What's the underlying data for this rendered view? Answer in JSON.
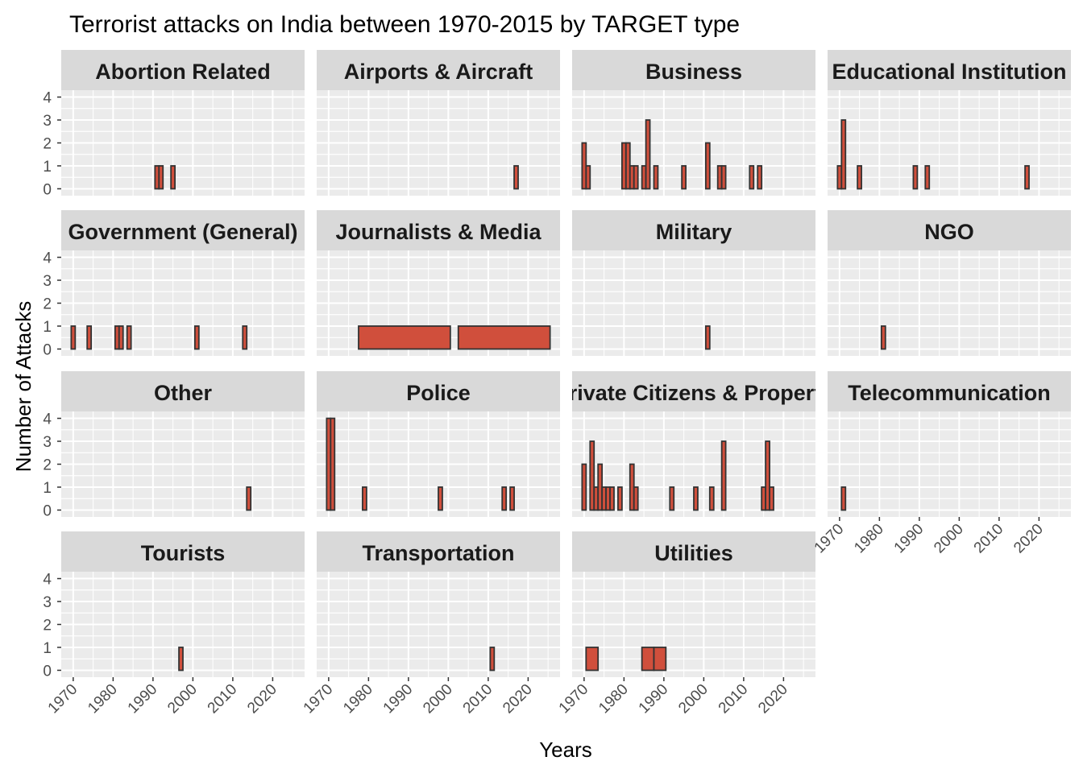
{
  "chart_data": {
    "type": "bar",
    "title": "Terrorist attacks on India between 1970-2015 by TARGET type",
    "xlabel": "Years",
    "ylabel": "Number of Attacks",
    "xlim": [
      1967,
      2028
    ],
    "ylim": [
      -0.3,
      4.3
    ],
    "x_ticks": [
      1970,
      1980,
      1990,
      2000,
      2010,
      2020
    ],
    "y_ticks": [
      0,
      1,
      2,
      3,
      4
    ],
    "grid": true,
    "colors": {
      "bar_fill": "#d04f3c",
      "bar_outline": "#333333",
      "panel_background": "#ebebeb",
      "grid": "#ffffff",
      "strip_background": "#d9d9d9"
    },
    "panels": [
      {
        "name": "Abortion Related",
        "bars": [
          {
            "x": 1991,
            "width": 1,
            "value": 1
          },
          {
            "x": 1992,
            "width": 1,
            "value": 1
          },
          {
            "x": 1995,
            "width": 1,
            "value": 1
          }
        ]
      },
      {
        "name": "Airports & Aircraft",
        "bars": [
          {
            "x": 2017,
            "width": 1,
            "value": 1
          }
        ]
      },
      {
        "name": "Business",
        "bars": [
          {
            "x": 1970,
            "width": 1,
            "value": 2
          },
          {
            "x": 1971,
            "width": 1,
            "value": 1
          },
          {
            "x": 1980,
            "width": 1,
            "value": 2
          },
          {
            "x": 1981,
            "width": 1,
            "value": 2
          },
          {
            "x": 1982,
            "width": 1,
            "value": 1
          },
          {
            "x": 1983,
            "width": 1,
            "value": 1
          },
          {
            "x": 1985,
            "width": 1,
            "value": 1
          },
          {
            "x": 1986,
            "width": 1,
            "value": 3
          },
          {
            "x": 1988,
            "width": 1,
            "value": 1
          },
          {
            "x": 1995,
            "width": 1,
            "value": 1
          },
          {
            "x": 2001,
            "width": 1,
            "value": 2
          },
          {
            "x": 2004,
            "width": 1,
            "value": 1
          },
          {
            "x": 2005,
            "width": 1,
            "value": 1
          },
          {
            "x": 2012,
            "width": 1,
            "value": 1
          },
          {
            "x": 2014,
            "width": 1,
            "value": 1
          }
        ]
      },
      {
        "name": "Educational Institution",
        "bars": [
          {
            "x": 1970,
            "width": 1,
            "value": 1
          },
          {
            "x": 1971,
            "width": 1,
            "value": 3
          },
          {
            "x": 1975,
            "width": 1,
            "value": 1
          },
          {
            "x": 1989,
            "width": 1,
            "value": 1
          },
          {
            "x": 1992,
            "width": 1,
            "value": 1
          },
          {
            "x": 2017,
            "width": 1,
            "value": 1
          }
        ]
      },
      {
        "name": "Government (General)",
        "bars": [
          {
            "x": 1970,
            "width": 1,
            "value": 1
          },
          {
            "x": 1974,
            "width": 1,
            "value": 1
          },
          {
            "x": 1981,
            "width": 1,
            "value": 1
          },
          {
            "x": 1982,
            "width": 1,
            "value": 1
          },
          {
            "x": 1984,
            "width": 1,
            "value": 1
          },
          {
            "x": 2001,
            "width": 1,
            "value": 1
          },
          {
            "x": 2013,
            "width": 1,
            "value": 1
          }
        ]
      },
      {
        "name": "Journalists & Media",
        "bars": [
          {
            "x": 1989,
            "width": 23,
            "value": 1
          },
          {
            "x": 2014,
            "width": 23,
            "value": 1
          }
        ]
      },
      {
        "name": "Military",
        "bars": [
          {
            "x": 2001,
            "width": 1,
            "value": 1
          }
        ]
      },
      {
        "name": "NGO",
        "bars": [
          {
            "x": 1981,
            "width": 1,
            "value": 1
          }
        ]
      },
      {
        "name": "Other",
        "bars": [
          {
            "x": 2014,
            "width": 1,
            "value": 1
          }
        ]
      },
      {
        "name": "Police",
        "bars": [
          {
            "x": 1970,
            "width": 1,
            "value": 4
          },
          {
            "x": 1971,
            "width": 1,
            "value": 4
          },
          {
            "x": 1979,
            "width": 1,
            "value": 1
          },
          {
            "x": 1998,
            "width": 1,
            "value": 1
          },
          {
            "x": 2014,
            "width": 1,
            "value": 1
          },
          {
            "x": 2016,
            "width": 1,
            "value": 1
          }
        ]
      },
      {
        "name": "Private Citizens & Property",
        "bars": [
          {
            "x": 1970,
            "width": 1,
            "value": 2
          },
          {
            "x": 1972,
            "width": 1,
            "value": 3
          },
          {
            "x": 1973,
            "width": 1,
            "value": 1
          },
          {
            "x": 1974,
            "width": 1,
            "value": 2
          },
          {
            "x": 1975,
            "width": 1,
            "value": 1
          },
          {
            "x": 1976,
            "width": 1,
            "value": 1
          },
          {
            "x": 1977,
            "width": 1,
            "value": 1
          },
          {
            "x": 1979,
            "width": 1,
            "value": 1
          },
          {
            "x": 1982,
            "width": 1,
            "value": 2
          },
          {
            "x": 1983,
            "width": 1,
            "value": 1
          },
          {
            "x": 1992,
            "width": 1,
            "value": 1
          },
          {
            "x": 1998,
            "width": 1,
            "value": 1
          },
          {
            "x": 2002,
            "width": 1,
            "value": 1
          },
          {
            "x": 2005,
            "width": 1,
            "value": 3
          },
          {
            "x": 2015,
            "width": 1,
            "value": 1
          },
          {
            "x": 2016,
            "width": 1,
            "value": 3
          },
          {
            "x": 2017,
            "width": 1,
            "value": 1
          }
        ]
      },
      {
        "name": "Telecommunication",
        "bars": [
          {
            "x": 1971,
            "width": 1,
            "value": 1
          }
        ]
      },
      {
        "name": "Tourists",
        "bars": [
          {
            "x": 1997,
            "width": 1,
            "value": 1
          }
        ]
      },
      {
        "name": "Transportation",
        "bars": [
          {
            "x": 2011,
            "width": 1,
            "value": 1
          }
        ]
      },
      {
        "name": "Utilities",
        "bars": [
          {
            "x": 1972,
            "width": 3,
            "value": 1
          },
          {
            "x": 1986,
            "width": 3,
            "value": 1
          },
          {
            "x": 1989,
            "width": 3,
            "value": 1
          }
        ]
      }
    ]
  }
}
